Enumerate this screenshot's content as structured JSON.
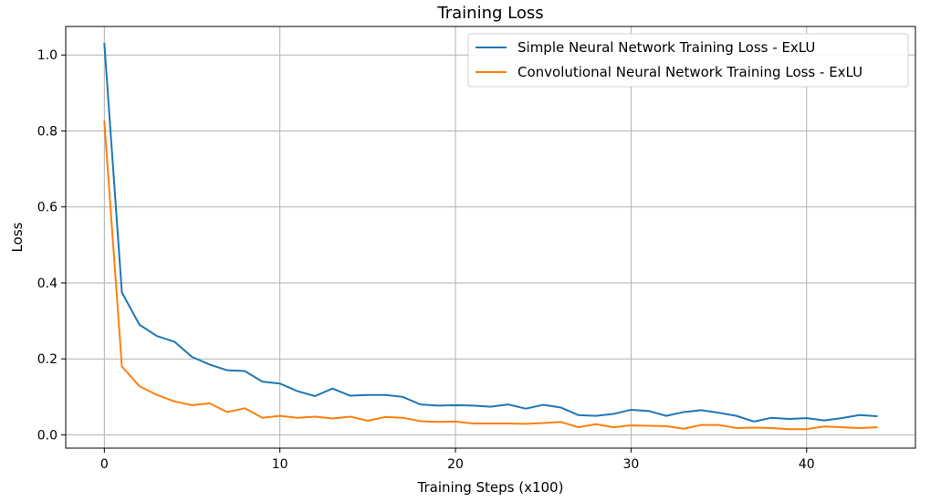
{
  "chart_data": {
    "type": "line",
    "title": "Training Loss",
    "xlabel": "Training Steps (x100)",
    "ylabel": "Loss",
    "xlim": [
      -2.2,
      46.2
    ],
    "ylim": [
      -0.035,
      1.075
    ],
    "xticks": [
      0,
      10,
      20,
      30,
      40
    ],
    "yticks": [
      0.0,
      0.2,
      0.4,
      0.6,
      0.8,
      1.0
    ],
    "xtick_labels": [
      "0",
      "10",
      "20",
      "30",
      "40"
    ],
    "ytick_labels": [
      "0.0",
      "0.2",
      "0.4",
      "0.6",
      "0.8",
      "1.0"
    ],
    "grid": true,
    "legend_position": "top-right",
    "x": [
      0,
      1,
      2,
      3,
      4,
      5,
      6,
      7,
      8,
      9,
      10,
      11,
      12,
      13,
      14,
      15,
      16,
      17,
      18,
      19,
      20,
      21,
      22,
      23,
      24,
      25,
      26,
      27,
      28,
      29,
      30,
      31,
      32,
      33,
      34,
      35,
      36,
      37,
      38,
      39,
      40,
      41,
      42,
      43,
      44
    ],
    "series": [
      {
        "name": "Simple Neural Network Training Loss - ExLU",
        "color": "#1f77b4",
        "values": [
          1.03,
          0.375,
          0.29,
          0.26,
          0.245,
          0.205,
          0.185,
          0.17,
          0.168,
          0.14,
          0.135,
          0.115,
          0.102,
          0.122,
          0.103,
          0.105,
          0.105,
          0.1,
          0.08,
          0.077,
          0.078,
          0.077,
          0.074,
          0.08,
          0.069,
          0.079,
          0.072,
          0.052,
          0.05,
          0.055,
          0.066,
          0.063,
          0.05,
          0.06,
          0.065,
          0.058,
          0.05,
          0.035,
          0.045,
          0.042,
          0.044,
          0.038,
          0.044,
          0.052,
          0.049
        ]
      },
      {
        "name": "Convolutional Neural Network Training Loss - ExLU",
        "color": "#ff7f0e",
        "values": [
          0.825,
          0.18,
          0.128,
          0.105,
          0.088,
          0.078,
          0.083,
          0.06,
          0.07,
          0.045,
          0.05,
          0.045,
          0.048,
          0.043,
          0.048,
          0.037,
          0.047,
          0.045,
          0.036,
          0.034,
          0.035,
          0.03,
          0.03,
          0.03,
          0.029,
          0.031,
          0.034,
          0.02,
          0.028,
          0.02,
          0.025,
          0.024,
          0.023,
          0.016,
          0.026,
          0.026,
          0.018,
          0.019,
          0.018,
          0.015,
          0.015,
          0.022,
          0.02,
          0.018,
          0.02
        ]
      }
    ]
  }
}
